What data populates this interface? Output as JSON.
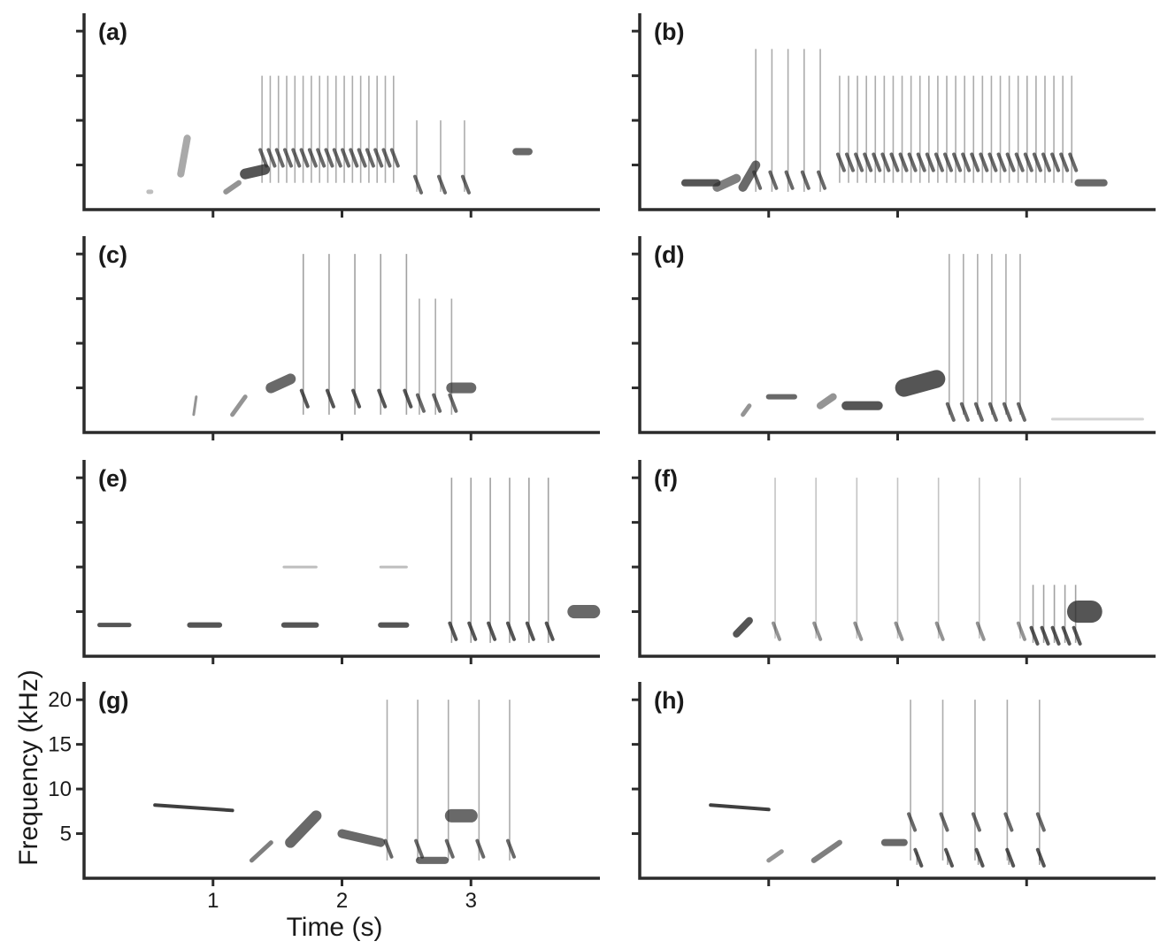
{
  "chart_data": {
    "type": "spectrogram",
    "xlabel": "Time (s)",
    "ylabel": "Frequency (kHz)",
    "x_ticks": [
      1,
      2,
      3
    ],
    "y_ticks": [
      5,
      10,
      15,
      20
    ],
    "xlim": [
      0,
      4.0
    ],
    "ylim": [
      0,
      22
    ],
    "grid": false,
    "colors": {
      "ink": "#2b2b2b",
      "background": "#ffffff"
    },
    "panels": [
      {
        "label": "(a)",
        "segments": [
          {
            "t0": 0.5,
            "t1": 0.52,
            "f0": 2,
            "f1": 2,
            "w": 0.5,
            "i": 0.3
          },
          {
            "t0": 0.75,
            "t1": 0.8,
            "f0": 4,
            "f1": 8,
            "w": 0.8,
            "i": 0.4
          },
          {
            "t0": 1.1,
            "t1": 1.2,
            "f0": 2,
            "f1": 3,
            "w": 0.6,
            "i": 0.5
          },
          {
            "t0": 1.25,
            "t1": 1.4,
            "f0": 4,
            "f1": 4.5,
            "w": 1.2,
            "i": 0.8
          },
          {
            "t0": 3.35,
            "t1": 3.45,
            "f0": 6.5,
            "f1": 6.5,
            "w": 0.8,
            "i": 0.7
          }
        ],
        "trains": [
          {
            "start": 1.38,
            "end": 2.4,
            "n": 17,
            "f_lo": 3,
            "f_hi": 15,
            "core": 5.5,
            "i": 0.7
          },
          {
            "start": 2.58,
            "end": 2.95,
            "n": 3,
            "f_lo": 2,
            "f_hi": 10,
            "core": 2.5,
            "i": 0.7
          }
        ]
      },
      {
        "label": "(b)",
        "segments": [
          {
            "t0": 0.35,
            "t1": 0.6,
            "f0": 3,
            "f1": 3,
            "w": 0.8,
            "i": 0.8
          },
          {
            "t0": 0.6,
            "t1": 0.75,
            "f0": 2.5,
            "f1": 3.5,
            "w": 1.0,
            "i": 0.6
          },
          {
            "t0": 0.8,
            "t1": 0.9,
            "f0": 2.5,
            "f1": 5,
            "w": 1.0,
            "i": 0.7
          },
          {
            "t0": 3.4,
            "t1": 3.6,
            "f0": 3,
            "f1": 3,
            "w": 0.8,
            "i": 0.7
          }
        ],
        "trains": [
          {
            "start": 0.9,
            "end": 1.4,
            "n": 5,
            "f_lo": 2,
            "f_hi": 18,
            "core": 3,
            "i": 0.7
          },
          {
            "start": 1.55,
            "end": 3.35,
            "n": 27,
            "f_lo": 3,
            "f_hi": 15,
            "core": 5,
            "i": 0.7
          }
        ]
      },
      {
        "label": "(c)",
        "segments": [
          {
            "t0": 0.85,
            "t1": 0.87,
            "f0": 2,
            "f1": 4,
            "w": 0.3,
            "i": 0.5
          },
          {
            "t0": 1.15,
            "t1": 1.25,
            "f0": 2,
            "f1": 4,
            "w": 0.5,
            "i": 0.5
          },
          {
            "t0": 1.45,
            "t1": 1.6,
            "f0": 5,
            "f1": 6,
            "w": 1.2,
            "i": 0.7
          },
          {
            "t0": 2.85,
            "t1": 3.0,
            "f0": 5,
            "f1": 5,
            "w": 1.2,
            "i": 0.7
          }
        ],
        "trains": [
          {
            "start": 1.7,
            "end": 2.5,
            "n": 5,
            "f_lo": 2,
            "f_hi": 20,
            "core": 3.5,
            "i": 0.8
          },
          {
            "start": 2.6,
            "end": 2.85,
            "n": 3,
            "f_lo": 2,
            "f_hi": 15,
            "core": 3,
            "i": 0.7
          }
        ]
      },
      {
        "label": "(d)",
        "segments": [
          {
            "t0": 0.8,
            "t1": 0.85,
            "f0": 2,
            "f1": 3,
            "w": 0.5,
            "i": 0.5
          },
          {
            "t0": 1.0,
            "t1": 1.2,
            "f0": 4,
            "f1": 4,
            "w": 0.6,
            "i": 0.7
          },
          {
            "t0": 1.4,
            "t1": 1.5,
            "f0": 3,
            "f1": 4,
            "w": 0.8,
            "i": 0.5
          },
          {
            "t0": 1.6,
            "t1": 1.85,
            "f0": 3,
            "f1": 3,
            "w": 1.0,
            "i": 0.8
          },
          {
            "t0": 2.05,
            "t1": 2.3,
            "f0": 5,
            "f1": 6,
            "w": 2.0,
            "i": 0.8
          },
          {
            "t0": 3.2,
            "t1": 3.9,
            "f0": 1.5,
            "f1": 1.5,
            "w": 0.3,
            "i": 0.2
          }
        ],
        "trains": [
          {
            "start": 2.4,
            "end": 2.95,
            "n": 6,
            "f_lo": 2,
            "f_hi": 20,
            "core": 2,
            "i": 0.7
          }
        ]
      },
      {
        "label": "(e)",
        "segments": [
          {
            "t0": 0.12,
            "t1": 0.35,
            "f0": 3.5,
            "f1": 3.5,
            "w": 0.5,
            "i": 0.8
          },
          {
            "t0": 0.82,
            "t1": 1.05,
            "f0": 3.5,
            "f1": 3.5,
            "w": 0.6,
            "i": 0.8
          },
          {
            "t0": 1.55,
            "t1": 1.8,
            "f0": 3.5,
            "f1": 3.5,
            "w": 0.6,
            "i": 0.8
          },
          {
            "t0": 2.3,
            "t1": 2.5,
            "f0": 3.5,
            "f1": 3.5,
            "w": 0.6,
            "i": 0.8
          },
          {
            "t0": 1.55,
            "t1": 1.8,
            "f0": 10,
            "f1": 10,
            "w": 0.3,
            "i": 0.3
          },
          {
            "t0": 2.3,
            "t1": 2.5,
            "f0": 10,
            "f1": 10,
            "w": 0.3,
            "i": 0.3
          },
          {
            "t0": 3.8,
            "t1": 3.95,
            "f0": 5,
            "f1": 5,
            "w": 1.5,
            "i": 0.7
          }
        ],
        "trains": [
          {
            "start": 2.85,
            "end": 3.6,
            "n": 6,
            "f_lo": 1.5,
            "f_hi": 20,
            "core": 2.5,
            "i": 0.8
          }
        ]
      },
      {
        "label": "(f)",
        "segments": [
          {
            "t0": 0.75,
            "t1": 0.85,
            "f0": 2.5,
            "f1": 4,
            "w": 0.8,
            "i": 0.8
          },
          {
            "t0": 3.4,
            "t1": 3.5,
            "f0": 5,
            "f1": 5,
            "w": 2.5,
            "i": 0.8
          }
        ],
        "trains": [
          {
            "start": 1.05,
            "end": 2.95,
            "n": 7,
            "f_lo": 2,
            "f_hi": 20,
            "core": 2.5,
            "i": 0.5
          },
          {
            "start": 3.05,
            "end": 3.38,
            "n": 5,
            "f_lo": 1.5,
            "f_hi": 8,
            "core": 2,
            "i": 0.8
          }
        ]
      },
      {
        "label": "(g)",
        "segments": [
          {
            "t0": 0.55,
            "t1": 1.15,
            "f0": 8.2,
            "f1": 7.6,
            "w": 0.4,
            "i": 0.9
          },
          {
            "t0": 1.3,
            "t1": 1.45,
            "f0": 2,
            "f1": 4,
            "w": 0.5,
            "i": 0.6
          },
          {
            "t0": 1.6,
            "t1": 1.8,
            "f0": 4,
            "f1": 7,
            "w": 1.2,
            "i": 0.7
          },
          {
            "t0": 2.0,
            "t1": 2.3,
            "f0": 5,
            "f1": 4,
            "w": 1.0,
            "i": 0.7
          },
          {
            "t0": 2.6,
            "t1": 2.8,
            "f0": 2,
            "f1": 2,
            "w": 0.8,
            "i": 0.7
          },
          {
            "t0": 2.85,
            "t1": 3.0,
            "f0": 7,
            "f1": 7,
            "w": 1.5,
            "i": 0.7
          }
        ],
        "trains": [
          {
            "start": 2.35,
            "end": 3.3,
            "n": 5,
            "f_lo": 2,
            "f_hi": 20,
            "core": 3,
            "i": 0.7
          }
        ]
      },
      {
        "label": "(h)",
        "segments": [
          {
            "t0": 0.55,
            "t1": 1.0,
            "f0": 8.2,
            "f1": 7.7,
            "w": 0.4,
            "i": 0.9
          },
          {
            "t0": 1.0,
            "t1": 1.1,
            "f0": 2,
            "f1": 3,
            "w": 0.5,
            "i": 0.5
          },
          {
            "t0": 1.35,
            "t1": 1.55,
            "f0": 2,
            "f1": 4,
            "w": 0.6,
            "i": 0.6
          },
          {
            "t0": 1.9,
            "t1": 2.05,
            "f0": 4,
            "f1": 4,
            "w": 0.8,
            "i": 0.7
          }
        ],
        "trains": [
          {
            "start": 2.1,
            "end": 3.1,
            "n": 5,
            "f_lo": 2,
            "f_hi": 20,
            "core": 6,
            "i": 0.7
          },
          {
            "start": 2.15,
            "end": 3.1,
            "n": 5,
            "f_lo": 1.5,
            "f_hi": 3,
            "core": 2,
            "i": 0.8
          }
        ]
      }
    ]
  }
}
